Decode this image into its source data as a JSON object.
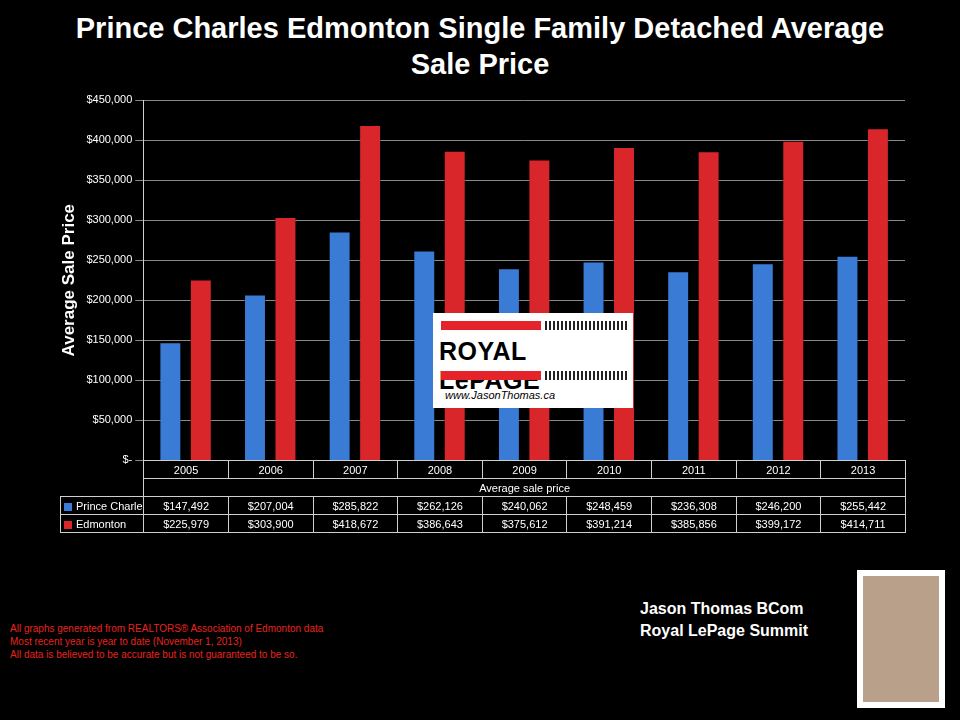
{
  "chart_data": {
    "type": "bar",
    "title": "Prince Charles Edmonton Single Family Detached Average Sale Price",
    "y_label": "Average Sale Price",
    "x_label": "Average sale price",
    "categories": [
      "2005",
      "2006",
      "2007",
      "2008",
      "2009",
      "2010",
      "2011",
      "2012",
      "2013"
    ],
    "series": [
      {
        "name": "Prince Charles",
        "color": "#3a7bd5",
        "values": [
          147492,
          207004,
          285822,
          262126,
          240062,
          248459,
          236308,
          246200,
          255442
        ],
        "value_labels": [
          "$147,492",
          "$207,004",
          "$285,822",
          "$262,126",
          "$240,062",
          "$248,459",
          "$236,308",
          "$246,200",
          "$255,442"
        ]
      },
      {
        "name": "Edmonton",
        "color": "#d9262b",
        "values": [
          225979,
          303900,
          418672,
          386643,
          375612,
          391214,
          385856,
          399172,
          414711
        ],
        "value_labels": [
          "$225,979",
          "$303,900",
          "$418,672",
          "$386,643",
          "$375,612",
          "$391,214",
          "$385,856",
          "$399,172",
          "$414,711"
        ]
      }
    ],
    "ylim": [
      0,
      450000
    ],
    "yticks": [
      {
        "value": 0,
        "label": "$-"
      },
      {
        "value": 50000,
        "label": "$50,000"
      },
      {
        "value": 100000,
        "label": "$100,000"
      },
      {
        "value": 150000,
        "label": "$150,000"
      },
      {
        "value": 200000,
        "label": "$200,000"
      },
      {
        "value": 250000,
        "label": "$250,000"
      },
      {
        "value": 300000,
        "label": "$300,000"
      },
      {
        "value": 350000,
        "label": "$350,000"
      },
      {
        "value": 400000,
        "label": "$400,000"
      },
      {
        "value": 450000,
        "label": "$450,000"
      }
    ],
    "grid": true
  },
  "logo": {
    "text": "ROYAL LePAGE",
    "url": "www.JasonThomas.ca"
  },
  "notes": [
    "All graphs generated from REALTORS® Association of Edmonton data",
    "Most recent year is year to date (November 1, 2013)",
    "All data is believed to be accurate but is not guaranteed to be so."
  ],
  "agent": {
    "name": "Jason Thomas BCom",
    "company": "Royal LePage Summit"
  }
}
